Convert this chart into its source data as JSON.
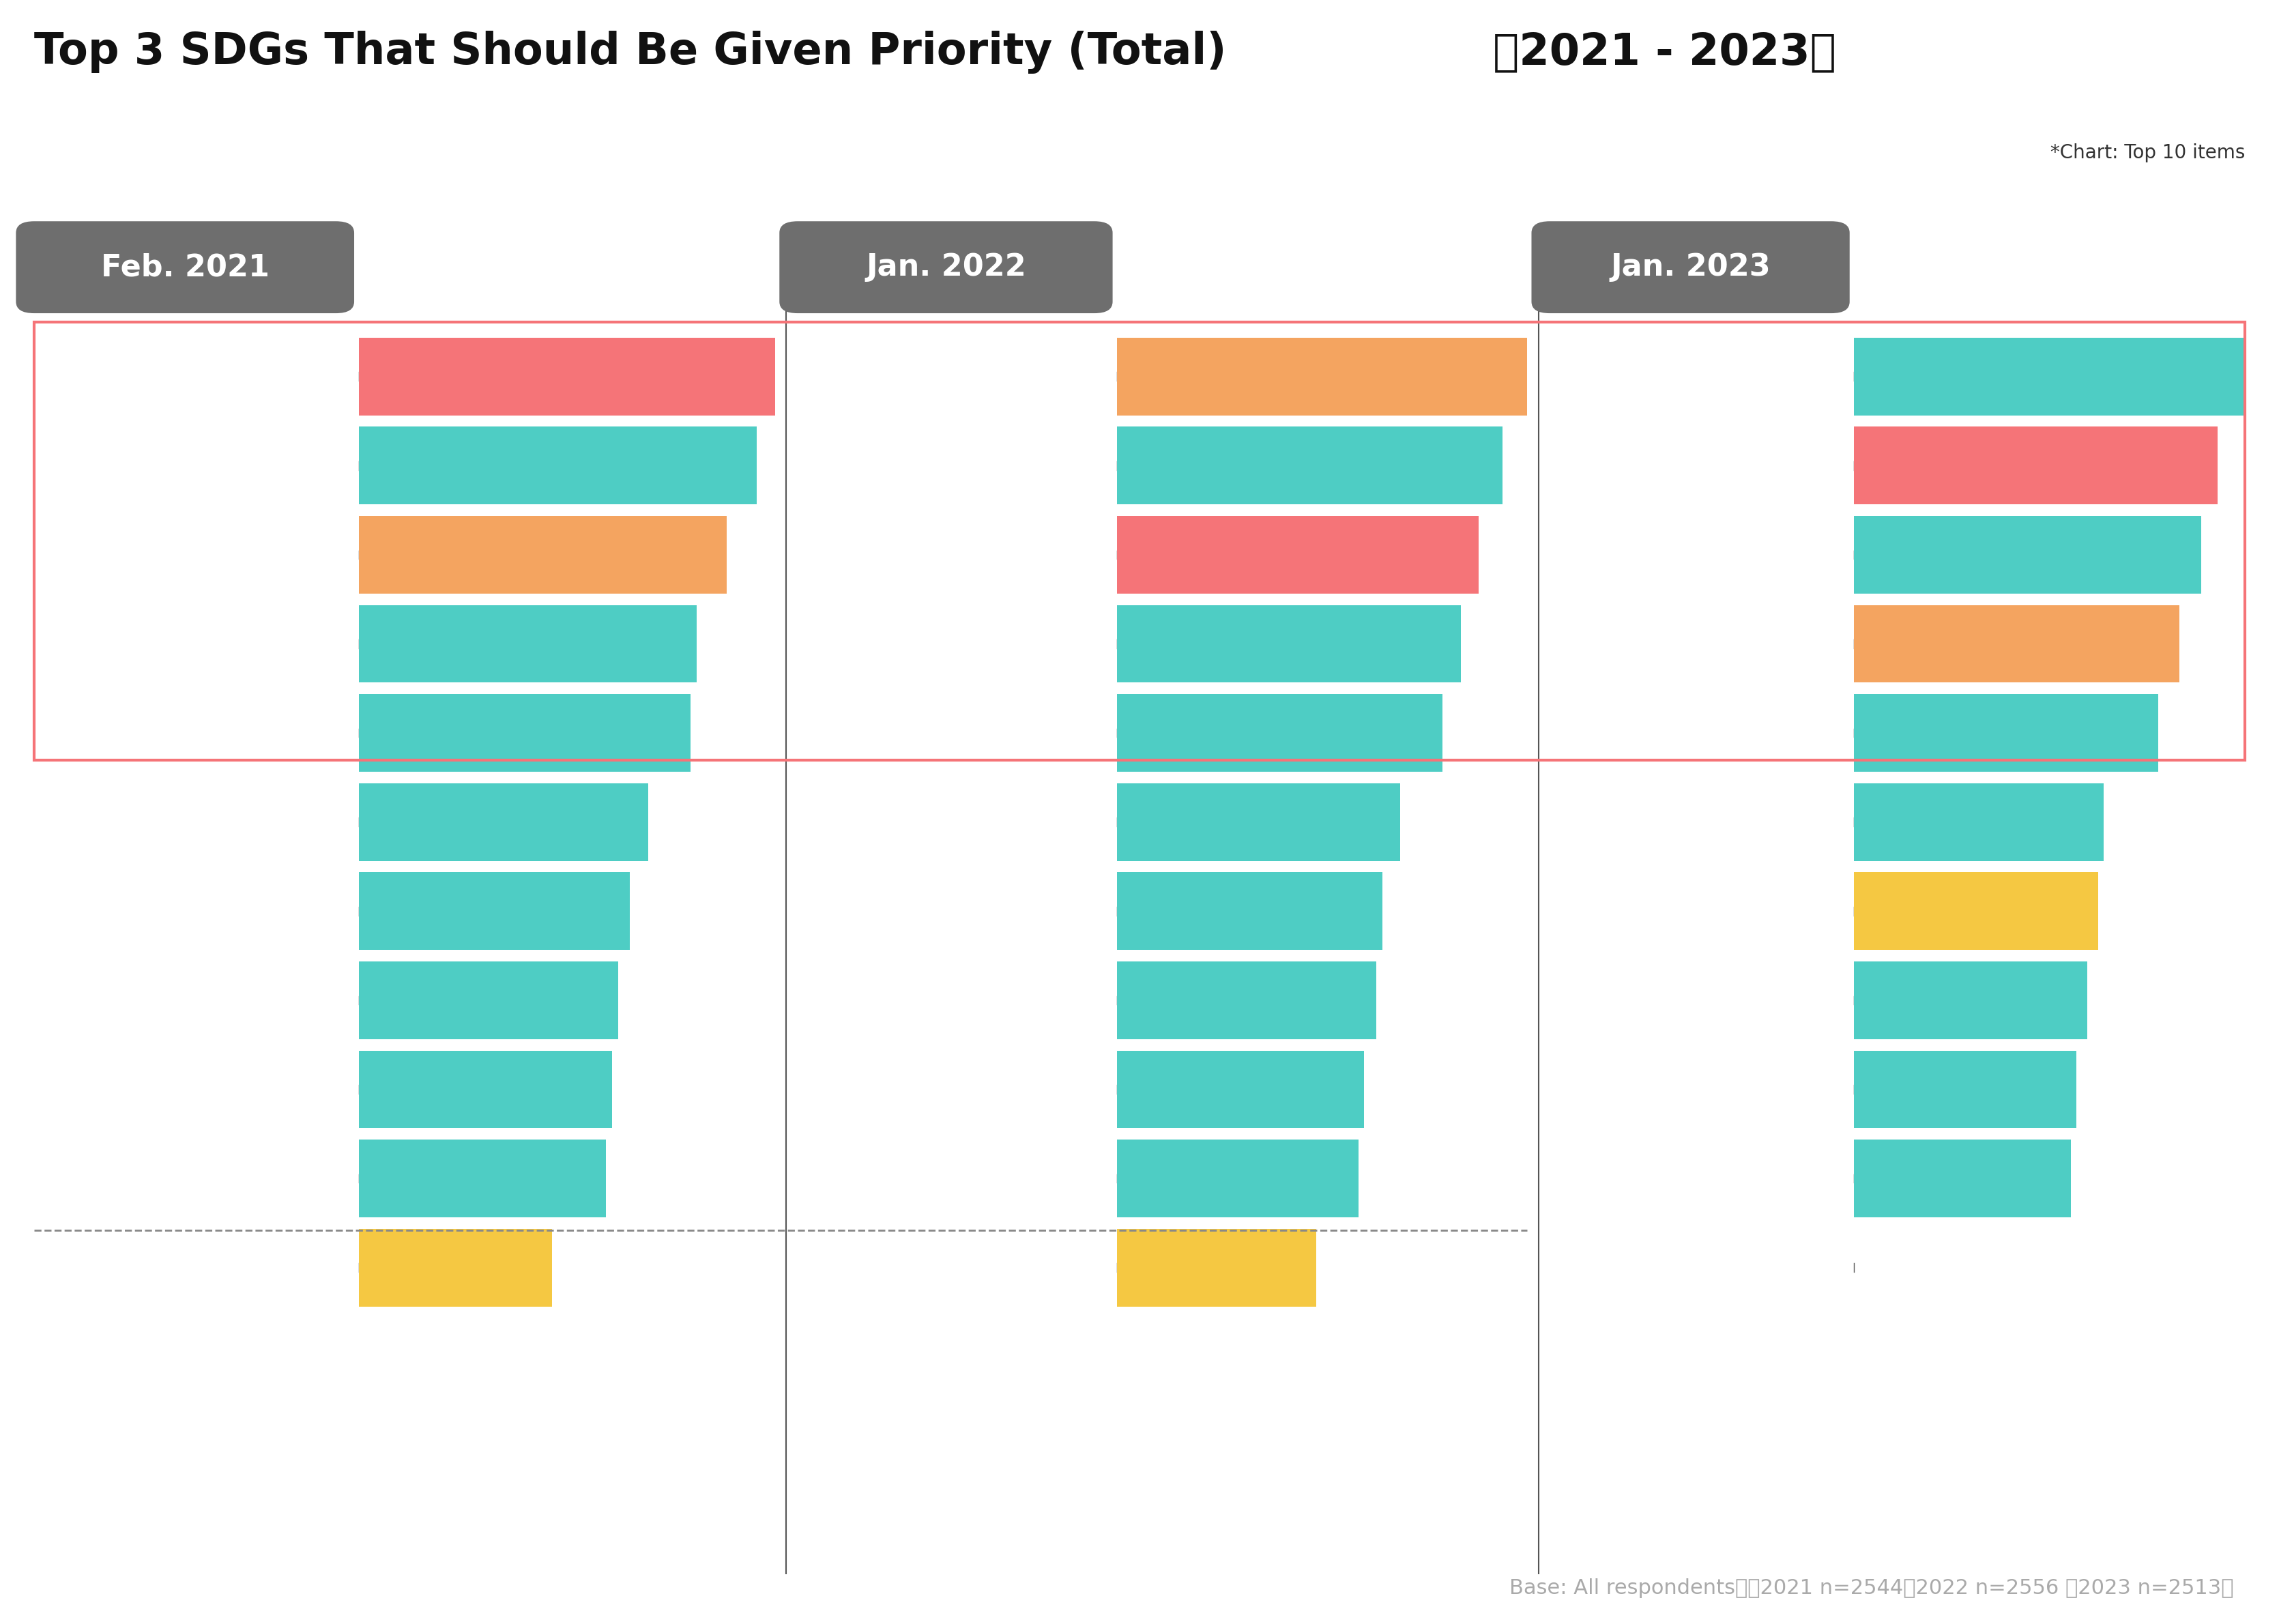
{
  "title_left": "Top 3 SDGs That Should Be Given Priority (Total)",
  "title_right": "（2021 - 2023）",
  "subtitle": "*Chart: Top 10 items",
  "base_text": "Base: All respondents　ﾈ2021 n=2544／2022 n=2556 ／2023 n=2513）",
  "period_labels": [
    "Feb. 2021",
    "Jan. 2022",
    "Jan. 2023"
  ],
  "bar_colors": {
    "pink": "#F57478",
    "cyan": "#4ECDC4",
    "orange": "#F4A460",
    "yellow": "#F5C842"
  },
  "data_2021": {
    "values": [
      34.5,
      33.0,
      30.5,
      28.0,
      27.5,
      24.0,
      22.5,
      21.5,
      21.0,
      20.5,
      16.0
    ],
    "colors": [
      "#F57478",
      "#4ECDC4",
      "#F4A460",
      "#4ECDC4",
      "#4ECDC4",
      "#4ECDC4",
      "#4ECDC4",
      "#4ECDC4",
      "#4ECDC4",
      "#4ECDC4",
      "#F5C842"
    ]
  },
  "data_2022": {
    "values": [
      34.0,
      32.0,
      30.0,
      28.5,
      27.0,
      23.5,
      22.0,
      21.5,
      20.5,
      20.0,
      16.5
    ],
    "colors": [
      "#F4A460",
      "#4ECDC4",
      "#F57478",
      "#4ECDC4",
      "#4ECDC4",
      "#4ECDC4",
      "#4ECDC4",
      "#4ECDC4",
      "#4ECDC4",
      "#4ECDC4",
      "#F5C842"
    ]
  },
  "data_2023": {
    "values": [
      36.0,
      33.5,
      32.0,
      30.0,
      28.0,
      23.0,
      22.5,
      21.5,
      20.5,
      20.0
    ],
    "colors": [
      "#4ECDC4",
      "#F57478",
      "#4ECDC4",
      "#F4A460",
      "#4ECDC4",
      "#4ECDC4",
      "#F5C842",
      "#4ECDC4",
      "#4ECDC4",
      "#4ECDC4"
    ]
  },
  "top3_box_color": "#F57478",
  "dashed_line_color": "#888888",
  "axis_line_color": "#555555",
  "label_bg_color": "#6e6e6e",
  "label_text_color": "#ffffff",
  "bg_color": "#000000",
  "title_bg_color": "#ffffff",
  "title_color": "#111111"
}
